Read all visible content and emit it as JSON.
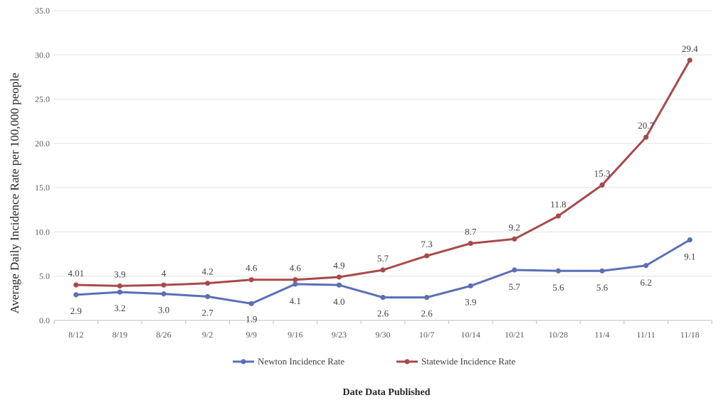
{
  "chart_data": {
    "type": "line",
    "xlabel": "Date Data Published",
    "ylabel": "Average Daily Incidence Rate per 100,000 people",
    "categories": [
      "8/12",
      "8/19",
      "8/26",
      "9/2",
      "9/9",
      "9/16",
      "9/23",
      "9/30",
      "10/7",
      "10/14",
      "10/21",
      "10/28",
      "11/4",
      "11/11",
      "11/18"
    ],
    "ylim": [
      0,
      35
    ],
    "yticks": [
      "0.0",
      "5.0",
      "10.0",
      "15.0",
      "20.0",
      "25.0",
      "30.0",
      "35.0"
    ],
    "grid": "horizontal",
    "legend_position": "bottom",
    "series": [
      {
        "name": "Newton Incidence Rate",
        "color": "#5b6fb5",
        "values": [
          2.9,
          3.2,
          3.0,
          2.7,
          1.9,
          4.1,
          4.0,
          2.6,
          2.6,
          3.9,
          5.7,
          5.6,
          5.6,
          6.2,
          9.1
        ],
        "labels": [
          "2.9",
          "3.2",
          "3.0",
          "2.7",
          "1.9",
          "4.1",
          "4.0",
          "2.6",
          "2.6",
          "3.9",
          "5.7",
          "5.6",
          "5.6",
          "6.2",
          "9.1"
        ]
      },
      {
        "name": "Statewide Incidence Rate",
        "color": "#a84a4a",
        "values": [
          4.01,
          3.9,
          4.0,
          4.2,
          4.6,
          4.6,
          4.9,
          5.7,
          7.3,
          8.7,
          9.2,
          11.8,
          15.3,
          20.7,
          29.4
        ],
        "labels": [
          "4.01",
          "3.9",
          "4",
          "4.2",
          "4.6",
          "4.6",
          "4.9",
          "5.7",
          "7.3",
          "8.7",
          "9.2",
          "11.8",
          "15.3",
          "20.7",
          "29.4"
        ]
      }
    ]
  }
}
